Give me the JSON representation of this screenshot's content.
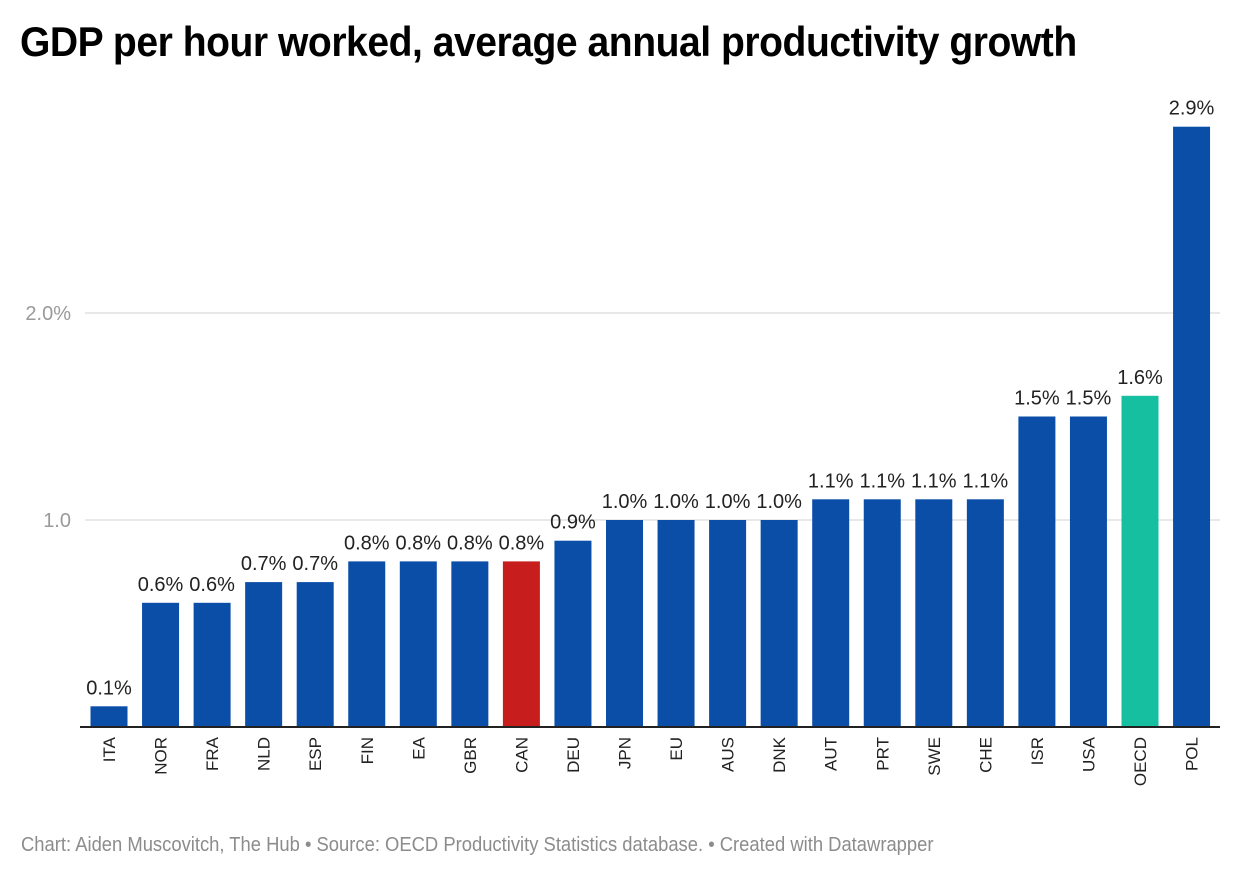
{
  "chart_data": {
    "type": "bar",
    "title": "GDP per hour worked, average annual productivity growth",
    "xlabel": "",
    "ylabel": "",
    "ylim": [
      0,
      2.9
    ],
    "yticks": [
      {
        "value": 1.0,
        "label": "1.0"
      },
      {
        "value": 2.0,
        "label": "2.0%"
      }
    ],
    "grid": true,
    "legend": "none",
    "categories": [
      "ITA",
      "NOR",
      "FRA",
      "NLD",
      "ESP",
      "FIN",
      "EA",
      "GBR",
      "CAN",
      "DEU",
      "JPN",
      "EU",
      "AUS",
      "DNK",
      "AUT",
      "PRT",
      "SWE",
      "CHE",
      "ISR",
      "USA",
      "OECD",
      "POL"
    ],
    "values": [
      0.1,
      0.6,
      0.6,
      0.7,
      0.7,
      0.8,
      0.8,
      0.8,
      0.8,
      0.9,
      1.0,
      1.0,
      1.0,
      1.0,
      1.1,
      1.1,
      1.1,
      1.1,
      1.5,
      1.5,
      1.6,
      2.9
    ],
    "value_labels": [
      "0.1%",
      "0.6%",
      "0.6%",
      "0.7%",
      "0.7%",
      "0.8%",
      "0.8%",
      "0.8%",
      "0.8%",
      "0.9%",
      "1.0%",
      "1.0%",
      "1.0%",
      "1.0%",
      "1.1%",
      "1.1%",
      "1.1%",
      "1.1%",
      "1.5%",
      "1.5%",
      "1.6%",
      "2.9%"
    ],
    "highlights": {
      "CAN": "#c71e1d",
      "OECD": "#15bfa0"
    },
    "default_color": "#0a4ea7"
  },
  "footer": "Chart: Aiden Muscovitch, The Hub • Source: OECD Productivity Statistics database. • Created with Datawrapper"
}
